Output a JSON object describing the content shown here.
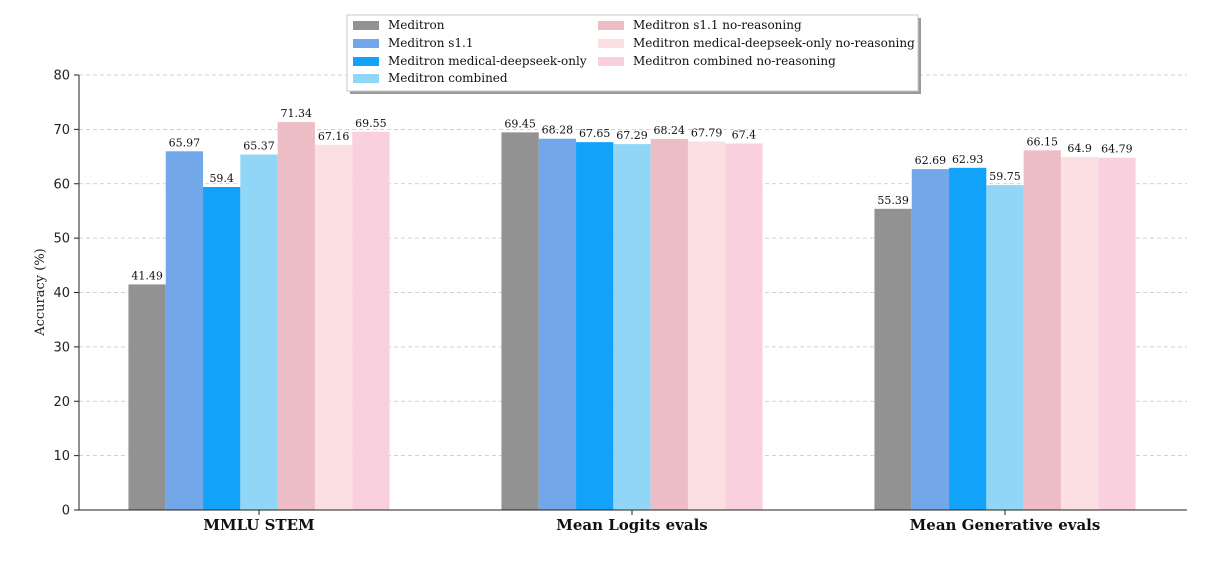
{
  "chart_data": {
    "type": "bar",
    "title": "",
    "xlabel": "",
    "ylabel": "Accuracy (%)",
    "ylim": [
      0,
      80
    ],
    "yticks": [
      0,
      10,
      20,
      30,
      40,
      50,
      60,
      70,
      80
    ],
    "grid": "y-dashed",
    "legend_position": "top-center",
    "categories": [
      "MMLU STEM",
      "Mean Logits evals",
      "Mean Generative evals"
    ],
    "series": [
      {
        "name": "Meditron",
        "color": "#929292",
        "values": [
          41.49,
          69.45,
          55.39
        ]
      },
      {
        "name": "Meditron s1.1",
        "color": "#72a7ea",
        "values": [
          65.97,
          68.28,
          62.69
        ]
      },
      {
        "name": "Meditron medical-deepseek-only",
        "color": "#12a2f9",
        "values": [
          59.4,
          67.65,
          62.93
        ]
      },
      {
        "name": "Meditron combined",
        "color": "#92d6f7",
        "values": [
          65.37,
          67.29,
          59.75
        ]
      },
      {
        "name": "Meditron s1.1 no-reasoning",
        "color": "#edbdc6",
        "values": [
          71.34,
          68.24,
          66.15
        ]
      },
      {
        "name": "Meditron medical-deepseek-only no-reasoning",
        "color": "#fbdfe3",
        "values": [
          67.16,
          67.79,
          64.9
        ]
      },
      {
        "name": "Meditron combined no-reasoning",
        "color": "#fad0df",
        "values": [
          69.55,
          67.4,
          64.79
        ]
      }
    ],
    "data_labels": [
      [
        "41.49",
        "69.45",
        "55.39"
      ],
      [
        "65.97",
        "68.28",
        "62.69"
      ],
      [
        "59.4",
        "67.65",
        "62.93"
      ],
      [
        "65.37",
        "67.29",
        "59.75"
      ],
      [
        "71.34",
        "68.24",
        "66.15"
      ],
      [
        "67.16",
        "67.79",
        "64.9"
      ],
      [
        "69.55",
        "67.4",
        "64.79"
      ]
    ]
  }
}
